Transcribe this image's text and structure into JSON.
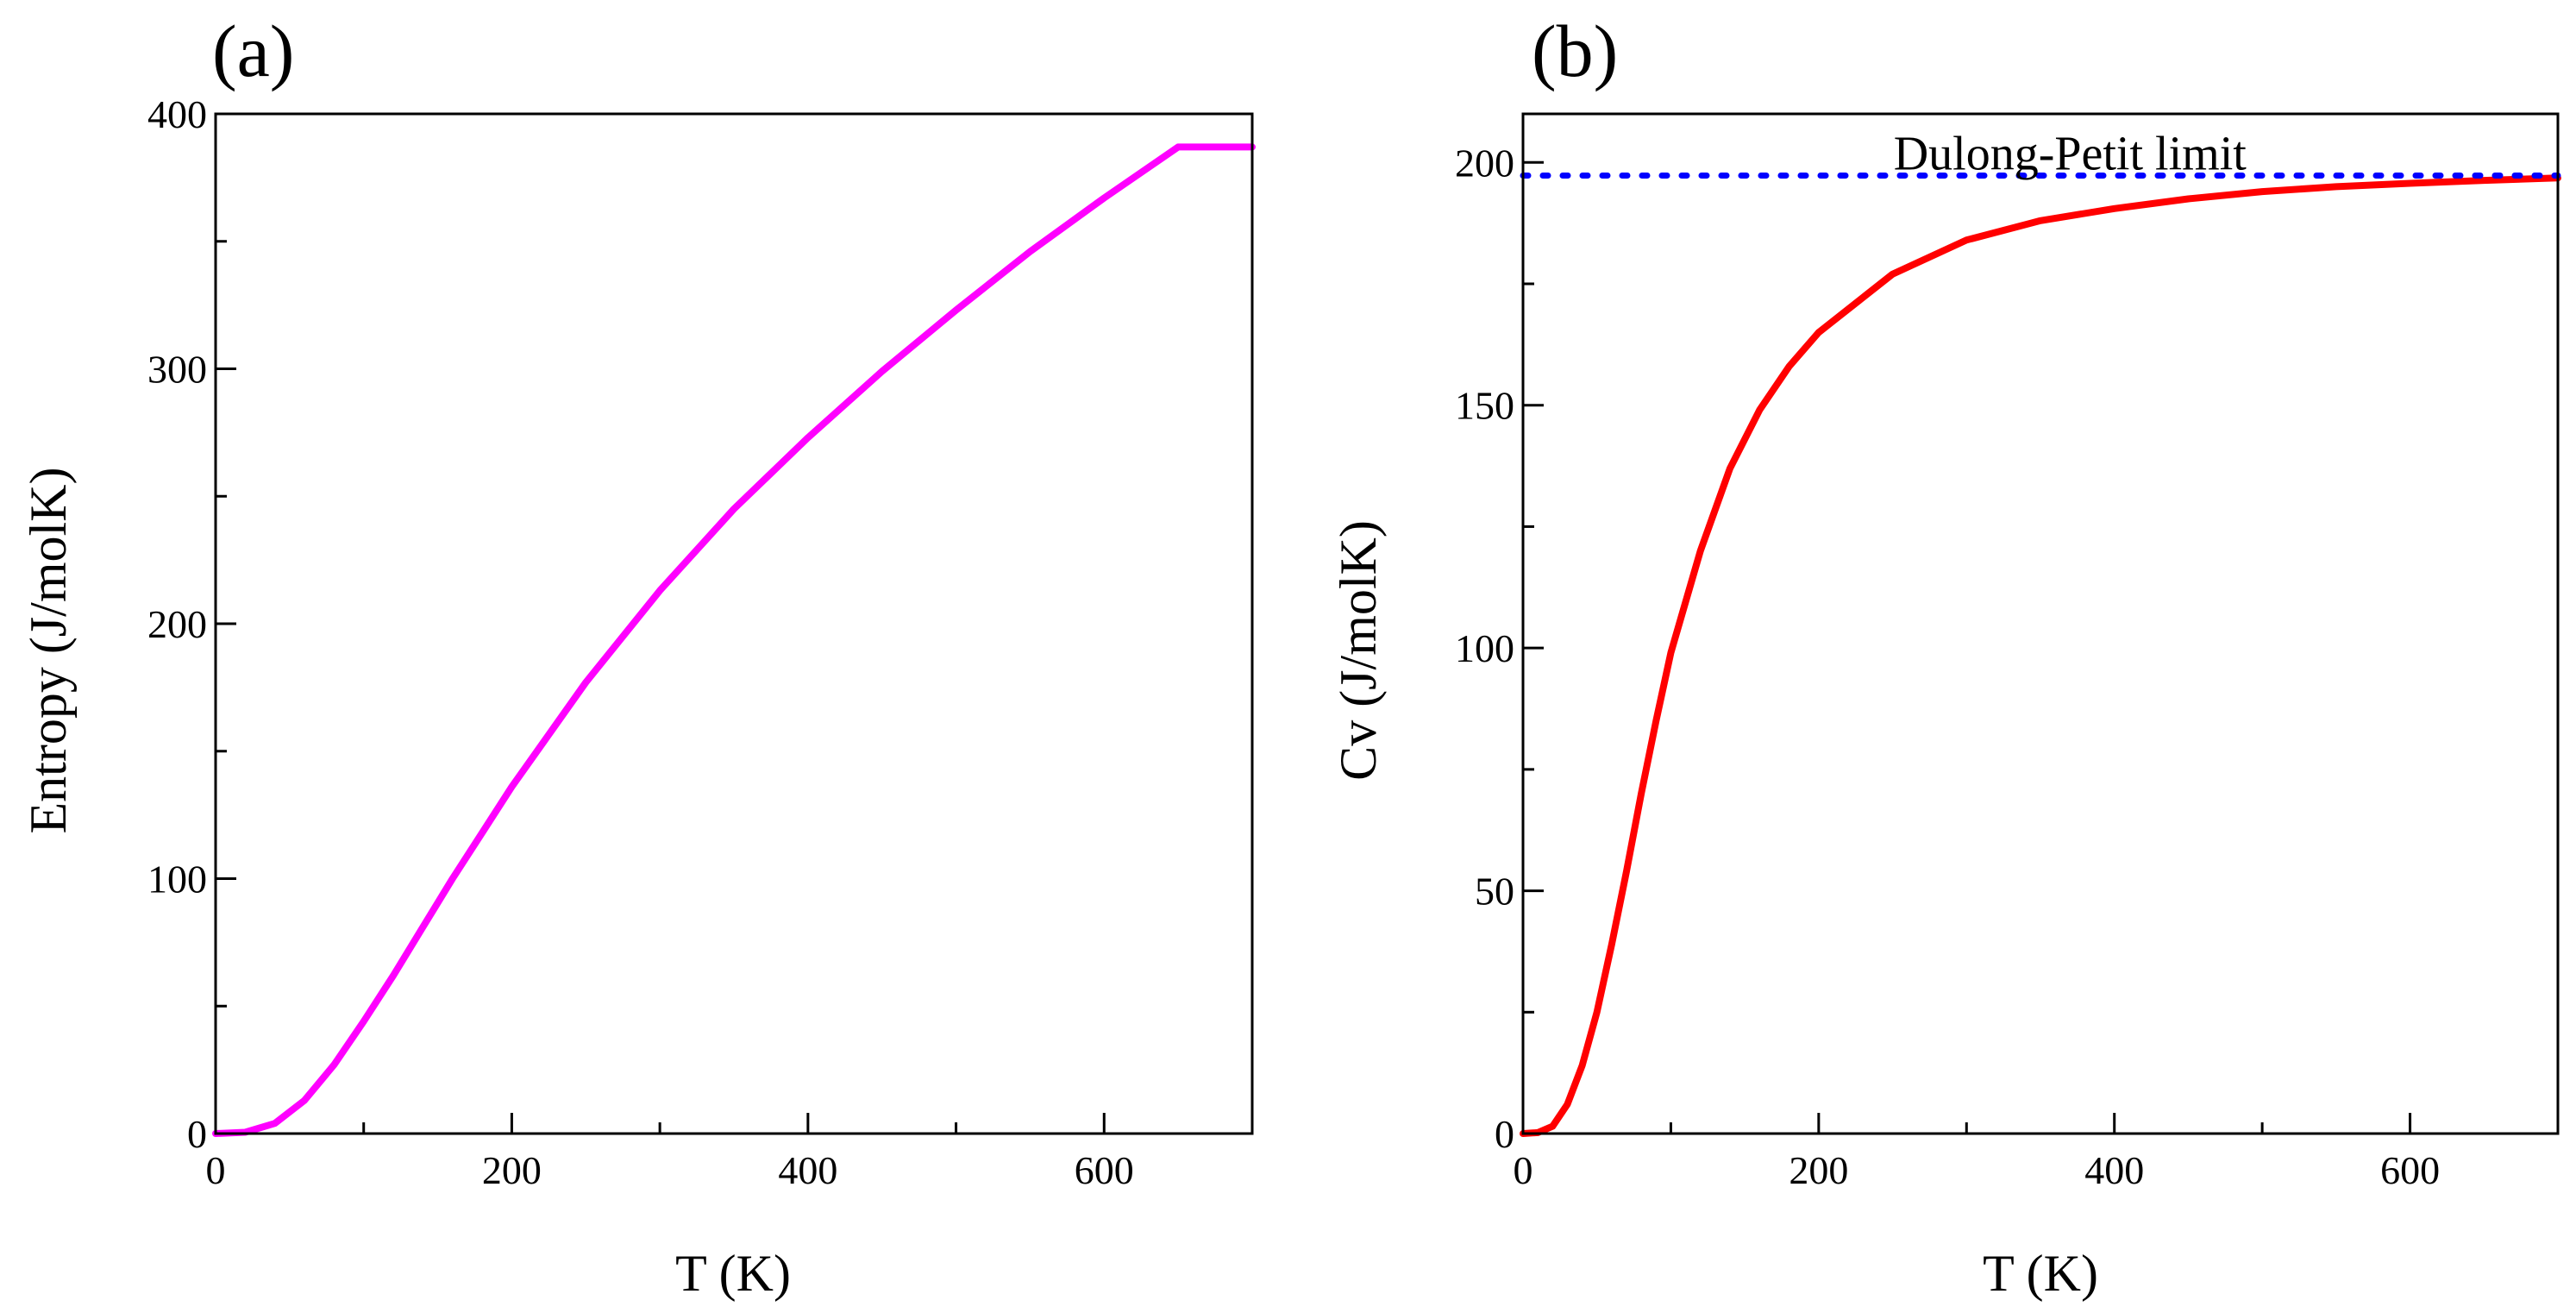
{
  "figure_title": "",
  "chart_data": [
    {
      "type": "line",
      "panel_label": "(a)",
      "title": "",
      "xlabel": "T (K)",
      "ylabel": "Entropy (J/molK)",
      "xlim": [
        0,
        700
      ],
      "ylim": [
        0,
        400
      ],
      "x_major_ticks": [
        0,
        200,
        400,
        600
      ],
      "x_minor_ticks": [
        100,
        300,
        500,
        700
      ],
      "y_major_ticks": [
        0,
        100,
        200,
        300,
        400
      ],
      "y_minor_ticks": [
        50,
        150,
        250,
        350
      ],
      "x_tick_labels": [
        "0",
        "200",
        "400",
        "600"
      ],
      "y_tick_labels": [
        "0",
        "100",
        "200",
        "300",
        "400"
      ],
      "grid": false,
      "series": [
        {
          "name": "Entropy",
          "color": "#ff00ff",
          "x": [
            0,
            20,
            40,
            60,
            80,
            100,
            120,
            140,
            160,
            180,
            200,
            250,
            300,
            350,
            400,
            450,
            500,
            550,
            600,
            650,
            700
          ],
          "y": [
            0,
            0.5,
            4,
            13,
            27,
            44,
            62,
            81,
            100,
            118,
            136,
            177,
            213,
            245,
            273,
            299,
            323,
            346,
            367,
            387,
            387
          ]
        }
      ]
    },
    {
      "type": "line",
      "panel_label": "(b)",
      "title": "",
      "xlabel": "T (K)",
      "ylabel": "Cv (J/molK)",
      "xlim": [
        0,
        700
      ],
      "ylim": [
        0,
        210
      ],
      "x_major_ticks": [
        0,
        200,
        400,
        600
      ],
      "x_minor_ticks": [
        100,
        300,
        500,
        700
      ],
      "y_major_ticks": [
        0,
        50,
        100,
        150,
        200
      ],
      "y_minor_ticks": [
        25,
        75,
        125,
        175
      ],
      "x_tick_labels": [
        "0",
        "200",
        "400",
        "600"
      ],
      "y_tick_labels": [
        "0",
        "50",
        "100",
        "150",
        "200"
      ],
      "grid": false,
      "series": [
        {
          "name": "Cv",
          "color": "#ff0000",
          "x": [
            0,
            10,
            20,
            30,
            40,
            50,
            60,
            70,
            80,
            90,
            100,
            120,
            140,
            160,
            180,
            200,
            250,
            300,
            350,
            400,
            450,
            500,
            550,
            600,
            650,
            700
          ],
          "y": [
            0,
            0.2,
            1.5,
            6,
            14,
            25,
            39,
            54,
            70,
            85,
            99,
            120,
            137,
            149,
            158,
            165,
            177,
            184,
            188,
            190.5,
            192.5,
            194,
            195,
            195.7,
            196.3,
            196.8
          ]
        },
        {
          "name": "Dulong-Petit limit",
          "color": "#0000ff",
          "style": "dotted",
          "x": [
            0,
            700
          ],
          "y": [
            197.3,
            197.3
          ]
        }
      ],
      "annotations": [
        {
          "text": "Dulong-Petit limit",
          "x": 370,
          "y": 200
        }
      ]
    }
  ]
}
